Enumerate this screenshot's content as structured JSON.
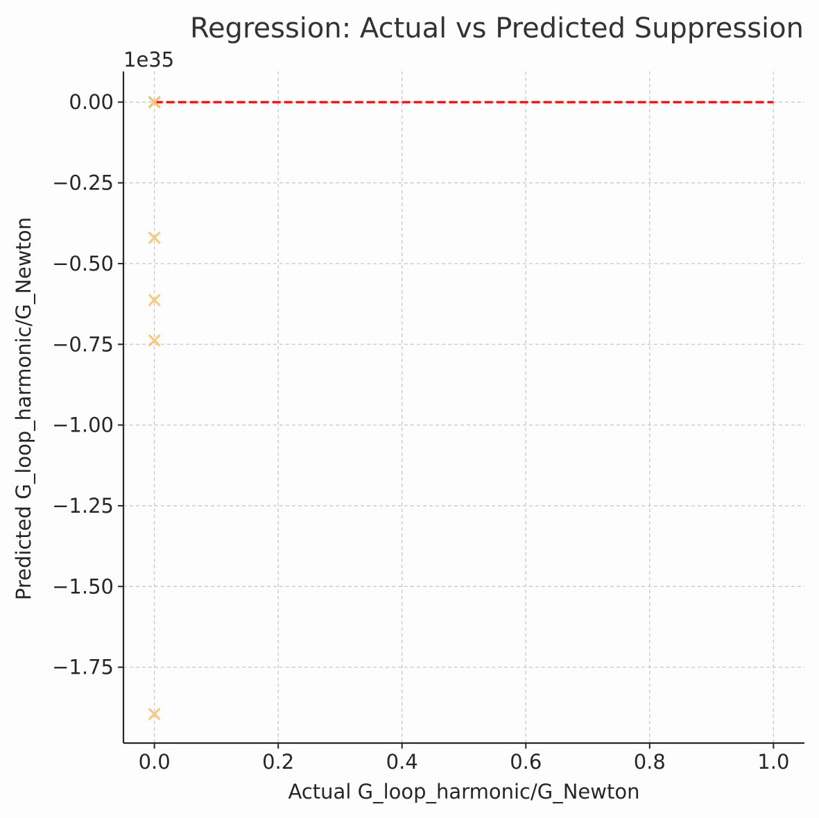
{
  "chart_data": {
    "type": "scatter",
    "title": "Regression: Actual vs Predicted Suppression",
    "xlabel": "Actual G_loop_harmonic/G_Newton",
    "ylabel": "Predicted G_loop_harmonic/G_Newton",
    "y_offset_label": "1e35",
    "xlim": [
      -0.05,
      1.05
    ],
    "ylim": [
      -1.985,
      0.095
    ],
    "xticks": [
      0.0,
      0.2,
      0.4,
      0.6,
      0.8,
      1.0
    ],
    "xtick_labels": [
      "0.0",
      "0.2",
      "0.4",
      "0.6",
      "0.8",
      "1.0"
    ],
    "yticks": [
      0.0,
      -0.25,
      -0.5,
      -0.75,
      -1.0,
      -1.25,
      -1.5,
      -1.75
    ],
    "ytick_labels": [
      "0.00",
      "−0.25",
      "−0.50",
      "−0.75",
      "−1.00",
      "−1.25",
      "−1.50",
      "−1.75"
    ],
    "grid": true,
    "series": [
      {
        "marker": "x",
        "color": "#f5c26b",
        "points": [
          {
            "x": 0.0,
            "y": 0.0
          },
          {
            "x": 0.0,
            "y": 0.0
          },
          {
            "x": 0.0,
            "y": 0.0
          },
          {
            "x": 0.0,
            "y": -0.42
          },
          {
            "x": 0.0,
            "y": -0.613
          },
          {
            "x": 0.0,
            "y": -0.738
          },
          {
            "x": 0.0,
            "y": -1.895
          }
        ]
      }
    ],
    "reference_line": {
      "style": "dashed",
      "color": "#ff0000",
      "x": [
        0.0,
        1.0
      ],
      "y": [
        0.0,
        0.0
      ]
    }
  }
}
